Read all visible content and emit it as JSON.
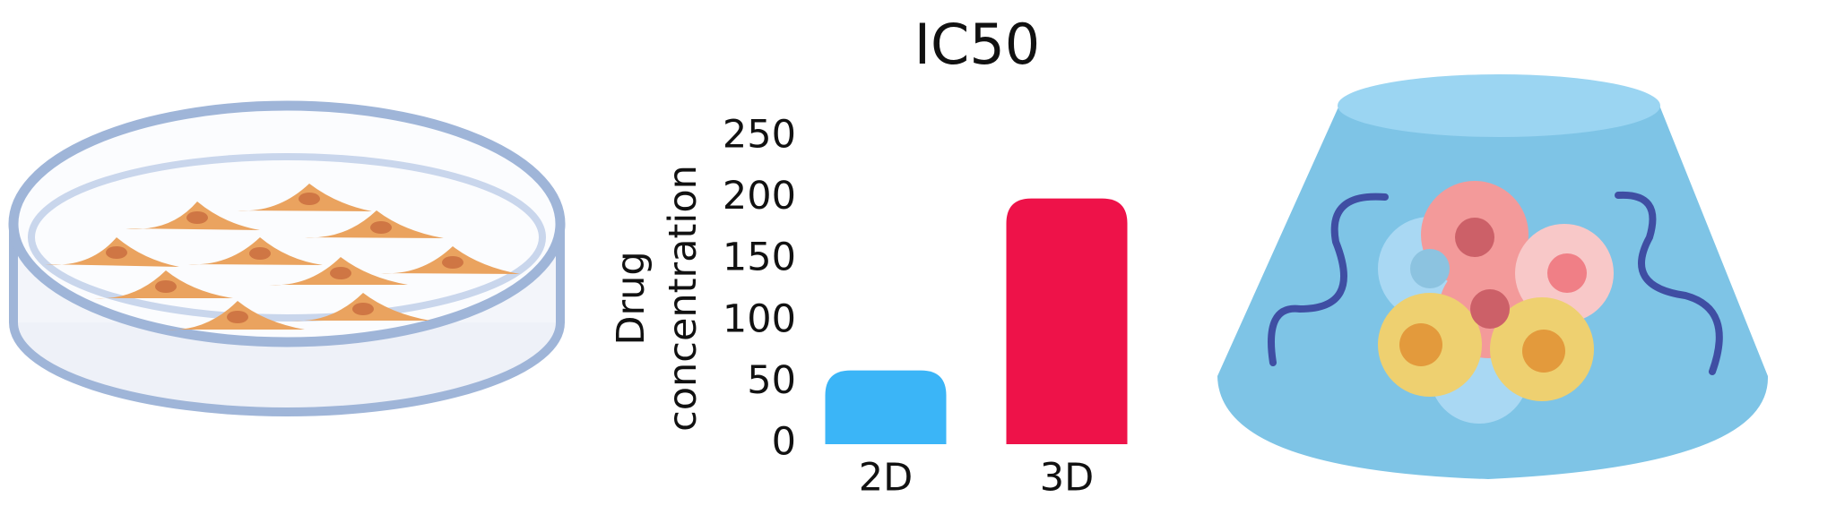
{
  "chart_data": {
    "type": "bar",
    "title": "IC50",
    "y_label": "Drug concentration",
    "categories": [
      "2D",
      "3D"
    ],
    "values": [
      60,
      200
    ],
    "colors": [
      "#3bb5f7",
      "#ee1249"
    ],
    "ylim": [
      0,
      250
    ],
    "yticks": [
      0,
      50,
      100,
      150,
      200,
      250
    ],
    "grid": false
  }
}
